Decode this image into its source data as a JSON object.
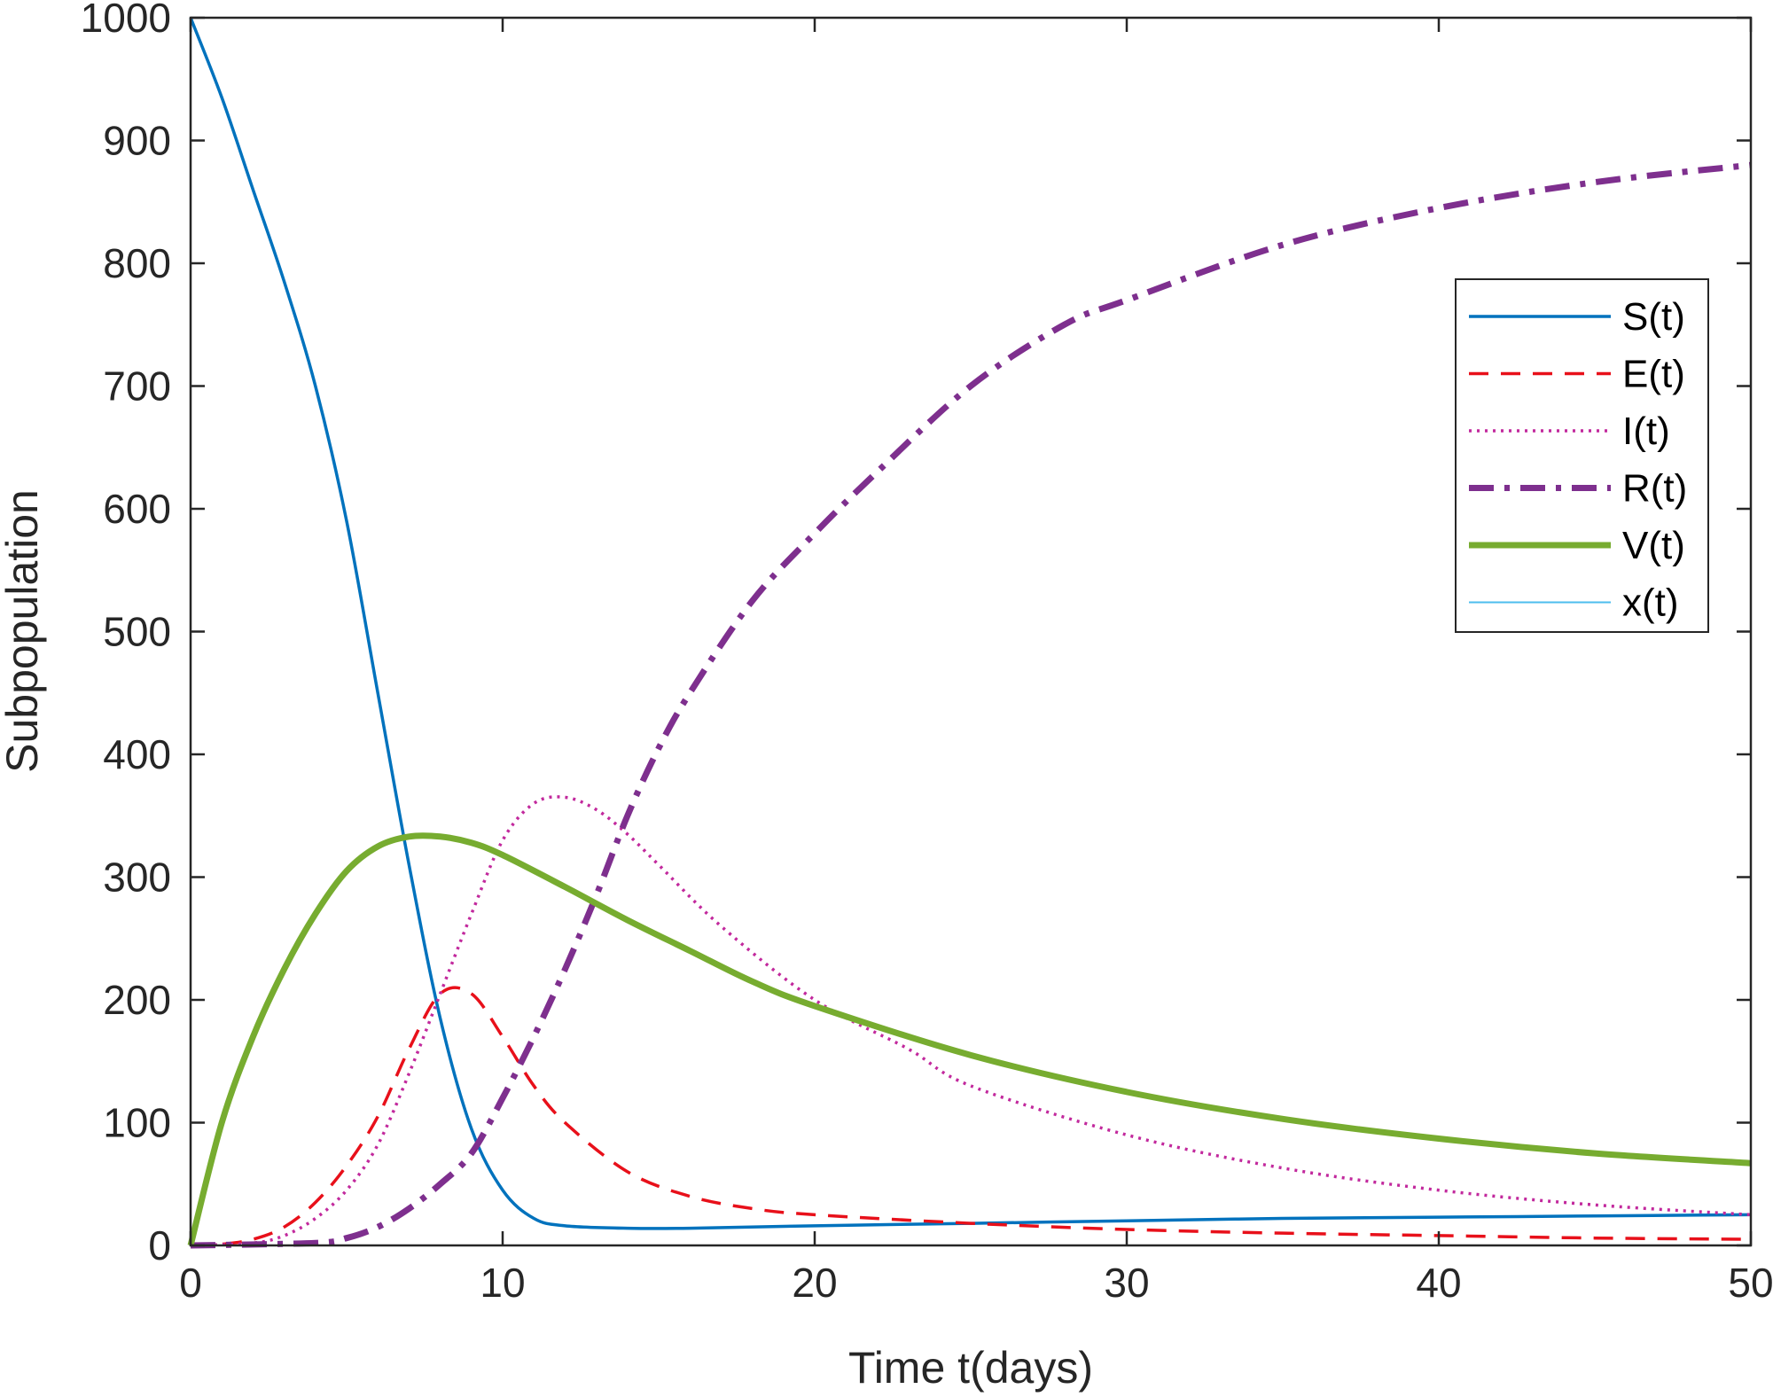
{
  "chart_data": {
    "type": "line",
    "xlabel": "Time t(days)",
    "ylabel": "Subpopulation",
    "xlim": [
      0,
      50
    ],
    "ylim": [
      0,
      1000
    ],
    "xticks": [
      0,
      10,
      20,
      30,
      40,
      50
    ],
    "yticks": [
      0,
      100,
      200,
      300,
      400,
      500,
      600,
      700,
      800,
      900,
      1000
    ],
    "xtick_labels": [
      "0",
      "10",
      "20",
      "30",
      "40",
      "50"
    ],
    "ytick_labels": [
      "0",
      "100",
      "200",
      "300",
      "400",
      "500",
      "600",
      "700",
      "800",
      "900",
      "1000"
    ],
    "grid": false,
    "legend_position": "top-right",
    "series": [
      {
        "name": "S(t)",
        "color": "#0072BD",
        "style": "solid",
        "x": [
          0,
          1,
          2,
          3,
          4,
          5,
          6,
          7,
          8,
          9,
          10,
          11,
          12,
          14,
          16,
          20,
          25,
          30,
          35,
          40,
          45,
          50
        ],
        "y": [
          1000,
          935,
          860,
          785,
          700,
          590,
          450,
          310,
          185,
          95,
          45,
          22,
          16,
          14,
          14,
          16,
          18,
          20,
          22,
          23,
          24,
          25
        ]
      },
      {
        "name": "E(t)",
        "color": "#E8101A",
        "style": "dashed",
        "x": [
          0,
          1,
          2,
          3,
          4,
          5,
          6,
          7,
          8,
          9,
          10,
          11,
          12,
          14,
          16,
          18,
          20,
          25,
          30,
          35,
          40,
          45,
          50
        ],
        "y": [
          0,
          1,
          5,
          15,
          35,
          65,
          105,
          160,
          205,
          205,
          170,
          130,
          100,
          60,
          40,
          30,
          25,
          18,
          13,
          10,
          8,
          6,
          5
        ]
      },
      {
        "name": "I(t)",
        "color": "#C2299D",
        "style": "dotted",
        "x": [
          0,
          2,
          3,
          4,
          5,
          6,
          7,
          8,
          9,
          10,
          11,
          12,
          13,
          14,
          15,
          17,
          20,
          23,
          25,
          30,
          35,
          40,
          45,
          50
        ],
        "y": [
          0,
          2,
          8,
          22,
          45,
          82,
          140,
          205,
          270,
          330,
          360,
          365,
          355,
          335,
          310,
          260,
          200,
          160,
          130,
          90,
          63,
          45,
          33,
          25
        ]
      },
      {
        "name": "R(t)",
        "color": "#7E2F8E",
        "style": "dashdot",
        "x": [
          0,
          4,
          5,
          6,
          7,
          8,
          9,
          10,
          11,
          12,
          13,
          14,
          15,
          16,
          18,
          20,
          22,
          25,
          28,
          30,
          35,
          40,
          45,
          50
        ],
        "y": [
          0,
          2,
          6,
          15,
          30,
          50,
          75,
          120,
          170,
          225,
          285,
          350,
          405,
          450,
          525,
          580,
          630,
          700,
          750,
          770,
          815,
          845,
          866,
          880
        ]
      },
      {
        "name": "V(t)",
        "color": "#77AC30",
        "style": "solid-thick",
        "x": [
          0,
          1,
          2,
          3,
          4,
          5,
          6,
          7,
          8,
          9,
          10,
          12,
          14,
          16,
          18,
          20,
          25,
          30,
          35,
          40,
          45,
          50
        ],
        "y": [
          0,
          100,
          170,
          225,
          270,
          305,
          325,
          333,
          333,
          328,
          318,
          292,
          265,
          240,
          215,
          195,
          155,
          125,
          103,
          87,
          75,
          67
        ]
      },
      {
        "name": "x(t)",
        "color": "#4DBEEE",
        "style": "solid-thin",
        "x": [
          0,
          10,
          20,
          30,
          40,
          50
        ],
        "y": [
          0,
          0,
          0,
          0,
          0,
          0
        ]
      }
    ]
  }
}
